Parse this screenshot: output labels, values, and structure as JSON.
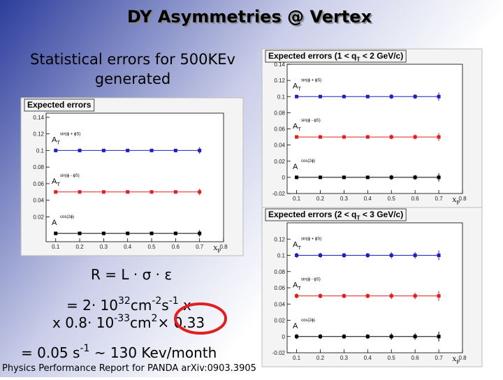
{
  "slide": {
    "title": "DY Asymmetries @ Vertex",
    "subtitle_lines": [
      "Statistical errors for 500KEv",
      "generated"
    ],
    "formula": [
      [
        {
          "text": "R = L · σ · ε"
        }
      ],
      [
        {
          "text": "= 2· 10"
        },
        {
          "text": "32",
          "sup": true
        },
        {
          "text": "cm"
        },
        {
          "text": "-2",
          "sup": true
        },
        {
          "text": "s"
        },
        {
          "text": "-1",
          "sup": true
        },
        {
          "text": " x"
        }
      ],
      [
        {
          "text": "x 0.8· 10"
        },
        {
          "text": "-33",
          "sup": true
        },
        {
          "text": "cm"
        },
        {
          "text": "2",
          "sup": true
        },
        {
          "text": "× 0.33"
        }
      ],
      [
        {
          "text": "= 0.05 s"
        },
        {
          "text": "-1",
          "sup": true
        },
        {
          "text": " ~ 130 Kev/month"
        }
      ]
    ],
    "footer": "Physics Performance Report for PANDA arXiv:0903.3905"
  },
  "chart_data": [
    {
      "type": "line",
      "title": [
        {
          "text": "Expected errors"
        }
      ],
      "xlabel": [
        {
          "text": "x"
        },
        {
          "text": "P",
          "sub": true
        }
      ],
      "x": [
        0.1,
        0.2,
        0.3,
        0.4,
        0.5,
        0.6,
        0.7
      ],
      "xlim": [
        0.06,
        0.8
      ],
      "xticks": [
        0.1,
        0.2,
        0.3,
        0.4,
        0.5,
        0.6,
        0.7,
        0.8
      ],
      "ylim": [
        -0.01,
        0.145
      ],
      "yticks": [
        0.02,
        0.04,
        0.06,
        0.08,
        0.1,
        0.12,
        0.14
      ],
      "series": [
        {
          "name": [
            {
              "text": "A"
            },
            {
              "text": "T",
              "sub": true
            }
          ],
          "superscript": "sin(ϕ + ϕS)",
          "color": "#2020c0",
          "values": [
            0.1,
            0.1,
            0.1,
            0.1,
            0.1,
            0.1,
            0.1
          ],
          "errors": [
            0.002,
            0.002,
            0.002,
            0.002,
            0.002,
            0.002,
            0.004
          ]
        },
        {
          "name": [
            {
              "text": "A"
            },
            {
              "text": "T",
              "sub": true
            }
          ],
          "superscript": "sin(ϕ - ϕS)",
          "color": "#e02020",
          "values": [
            0.05,
            0.05,
            0.05,
            0.05,
            0.05,
            0.05,
            0.05
          ],
          "errors": [
            0.002,
            0.002,
            0.002,
            0.002,
            0.002,
            0.002,
            0.004
          ]
        },
        {
          "name": [
            {
              "text": "A"
            }
          ],
          "superscript": "cos(2ϕ)",
          "color": "#000000",
          "values": [
            0,
            0,
            0,
            0,
            0,
            0,
            0
          ],
          "errors": [
            0.002,
            0.002,
            0.002,
            0.002,
            0.002,
            0.002,
            0.004
          ]
        }
      ]
    },
    {
      "type": "line",
      "title": [
        {
          "text": "Expected errors (1 < q"
        },
        {
          "text": "T",
          "sub": true
        },
        {
          "text": " < 2 GeV/c)"
        }
      ],
      "xlabel": [
        {
          "text": "x"
        },
        {
          "text": "P",
          "sub": true
        }
      ],
      "x": [
        0.1,
        0.2,
        0.3,
        0.4,
        0.5,
        0.6,
        0.7
      ],
      "xlim": [
        0.06,
        0.8
      ],
      "xticks": [
        0.1,
        0.2,
        0.3,
        0.4,
        0.5,
        0.6,
        0.7,
        0.8
      ],
      "ylim": [
        -0.02,
        0.14
      ],
      "yticks": [
        -0.02,
        0,
        0.02,
        0.04,
        0.06,
        0.08,
        0.1,
        0.12,
        0.14
      ],
      "series": [
        {
          "name": [
            {
              "text": "A"
            },
            {
              "text": "T",
              "sub": true
            }
          ],
          "superscript": "sin(ϕ + ϕS)",
          "color": "#2020c0",
          "values": [
            0.1,
            0.1,
            0.1,
            0.1,
            0.1,
            0.1,
            0.1
          ],
          "errors": [
            0.002,
            0.002,
            0.002,
            0.002,
            0.003,
            0.003,
            0.005
          ]
        },
        {
          "name": [
            {
              "text": "A"
            },
            {
              "text": "T",
              "sub": true
            }
          ],
          "superscript": "sin(ϕ - ϕS)",
          "color": "#e02020",
          "values": [
            0.05,
            0.05,
            0.05,
            0.05,
            0.05,
            0.05,
            0.05
          ],
          "errors": [
            0.002,
            0.002,
            0.002,
            0.002,
            0.003,
            0.003,
            0.005
          ]
        },
        {
          "name": [
            {
              "text": "A"
            }
          ],
          "superscript": "cos(2ϕ)",
          "color": "#000000",
          "values": [
            0,
            0,
            0,
            0,
            0,
            0,
            0
          ],
          "errors": [
            0.002,
            0.002,
            0.002,
            0.002,
            0.003,
            0.003,
            0.005
          ]
        }
      ]
    },
    {
      "type": "line",
      "title": [
        {
          "text": "Expected errors (2 < q"
        },
        {
          "text": "T",
          "sub": true
        },
        {
          "text": " < 3 GeV/c)"
        }
      ],
      "xlabel": [
        {
          "text": "x"
        },
        {
          "text": "P",
          "sub": true
        }
      ],
      "x": [
        0.1,
        0.2,
        0.3,
        0.4,
        0.5,
        0.6,
        0.7
      ],
      "xlim": [
        0.06,
        0.8
      ],
      "xticks": [
        0.1,
        0.2,
        0.3,
        0.4,
        0.5,
        0.6,
        0.7,
        0.8
      ],
      "ylim": [
        -0.02,
        0.14
      ],
      "yticks": [
        -0.02,
        0,
        0.02,
        0.04,
        0.06,
        0.08,
        0.1,
        0.12
      ],
      "series": [
        {
          "name": [
            {
              "text": "A"
            },
            {
              "text": "T",
              "sub": true
            }
          ],
          "superscript": "sin(ϕ + ϕS)",
          "color": "#2020c0",
          "values": [
            0.1,
            0.1,
            0.1,
            0.1,
            0.1,
            0.1,
            0.1
          ],
          "errors": [
            0.003,
            0.003,
            0.003,
            0.003,
            0.004,
            0.004,
            0.006
          ]
        },
        {
          "name": [
            {
              "text": "A"
            },
            {
              "text": "T",
              "sub": true
            }
          ],
          "superscript": "sin(ϕ - ϕS)",
          "color": "#e02020",
          "values": [
            0.05,
            0.05,
            0.05,
            0.05,
            0.05,
            0.05,
            0.05
          ],
          "errors": [
            0.003,
            0.003,
            0.003,
            0.003,
            0.004,
            0.004,
            0.006
          ]
        },
        {
          "name": [
            {
              "text": "A"
            }
          ],
          "superscript": "cos(2ϕ)",
          "color": "#000000",
          "values": [
            0,
            0,
            0,
            0,
            0,
            0,
            0
          ],
          "errors": [
            0.003,
            0.003,
            0.003,
            0.003,
            0.004,
            0.004,
            0.006
          ]
        }
      ]
    }
  ]
}
